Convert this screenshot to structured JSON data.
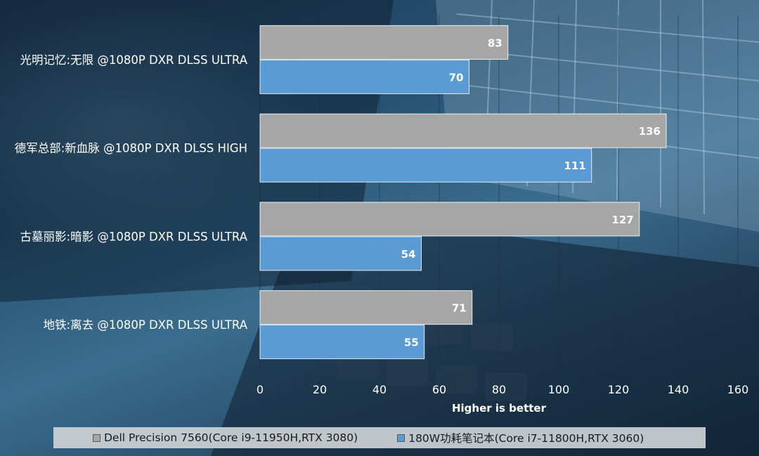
{
  "chart_data": {
    "type": "bar",
    "orientation": "horizontal",
    "categories": [
      "光明记忆:无限 @1080P DXR DLSS ULTRA",
      "德军总部:新血脉 @1080P DXR DLSS HIGH",
      "古墓丽影:暗影 @1080P DXR DLSS ULTRA",
      "地铁:离去 @1080P DXR DLSS ULTRA"
    ],
    "series": [
      {
        "name": "Dell Precision 7560(Core i9-11950H,RTX 3080)",
        "color": "#a6a6a6",
        "values": [
          83,
          136,
          127,
          71
        ]
      },
      {
        "name": "180W功耗笔记本(Core i7-11800H,RTX 3060)",
        "color": "#5b9bd5",
        "values": [
          70,
          111,
          54,
          55
        ]
      }
    ],
    "xlabel": "Higher is better",
    "xlim": [
      0,
      160
    ],
    "xticks": [
      0,
      20,
      40,
      60,
      80,
      100,
      120,
      140,
      160
    ],
    "grid": true,
    "legend_position": "bottom"
  }
}
